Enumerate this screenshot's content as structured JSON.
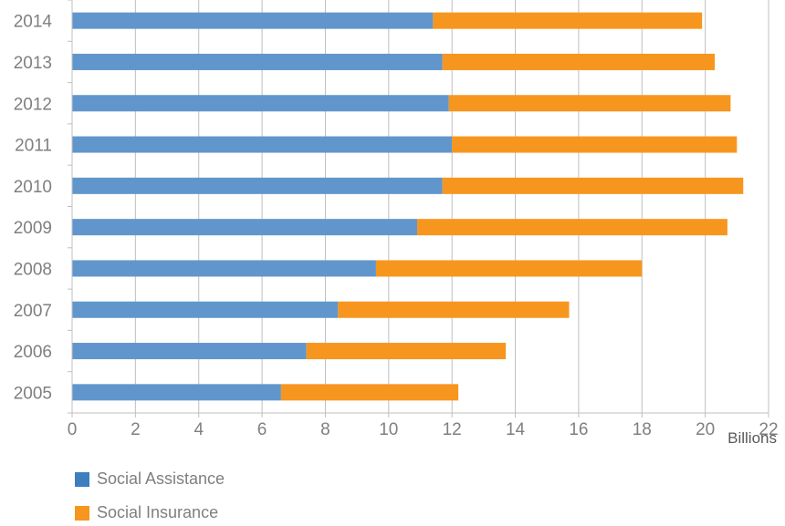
{
  "chart_data": {
    "type": "bar",
    "orientation": "horizontal",
    "stacked": true,
    "categories": [
      "2014",
      "2013",
      "2012",
      "2011",
      "2010",
      "2009",
      "2008",
      "2007",
      "2006",
      "2005"
    ],
    "series": [
      {
        "name": "Social Assistance",
        "color": "#6196cc",
        "legend_color": "#3d7ebf",
        "values": [
          11.4,
          11.7,
          11.9,
          12.0,
          11.7,
          10.9,
          9.6,
          8.4,
          7.4,
          6.6
        ]
      },
      {
        "name": "Social Insurance",
        "color": "#f7961e",
        "legend_color": "#f7961e",
        "values": [
          8.5,
          8.6,
          8.9,
          9.0,
          9.5,
          9.8,
          8.4,
          7.3,
          6.3,
          5.6
        ]
      }
    ],
    "xlim": [
      0,
      22
    ],
    "xticks": [
      0,
      2,
      4,
      6,
      8,
      10,
      12,
      14,
      16,
      18,
      20,
      22
    ],
    "unit_label": "Billions",
    "grid": true,
    "legend_position": "bottom-left"
  }
}
